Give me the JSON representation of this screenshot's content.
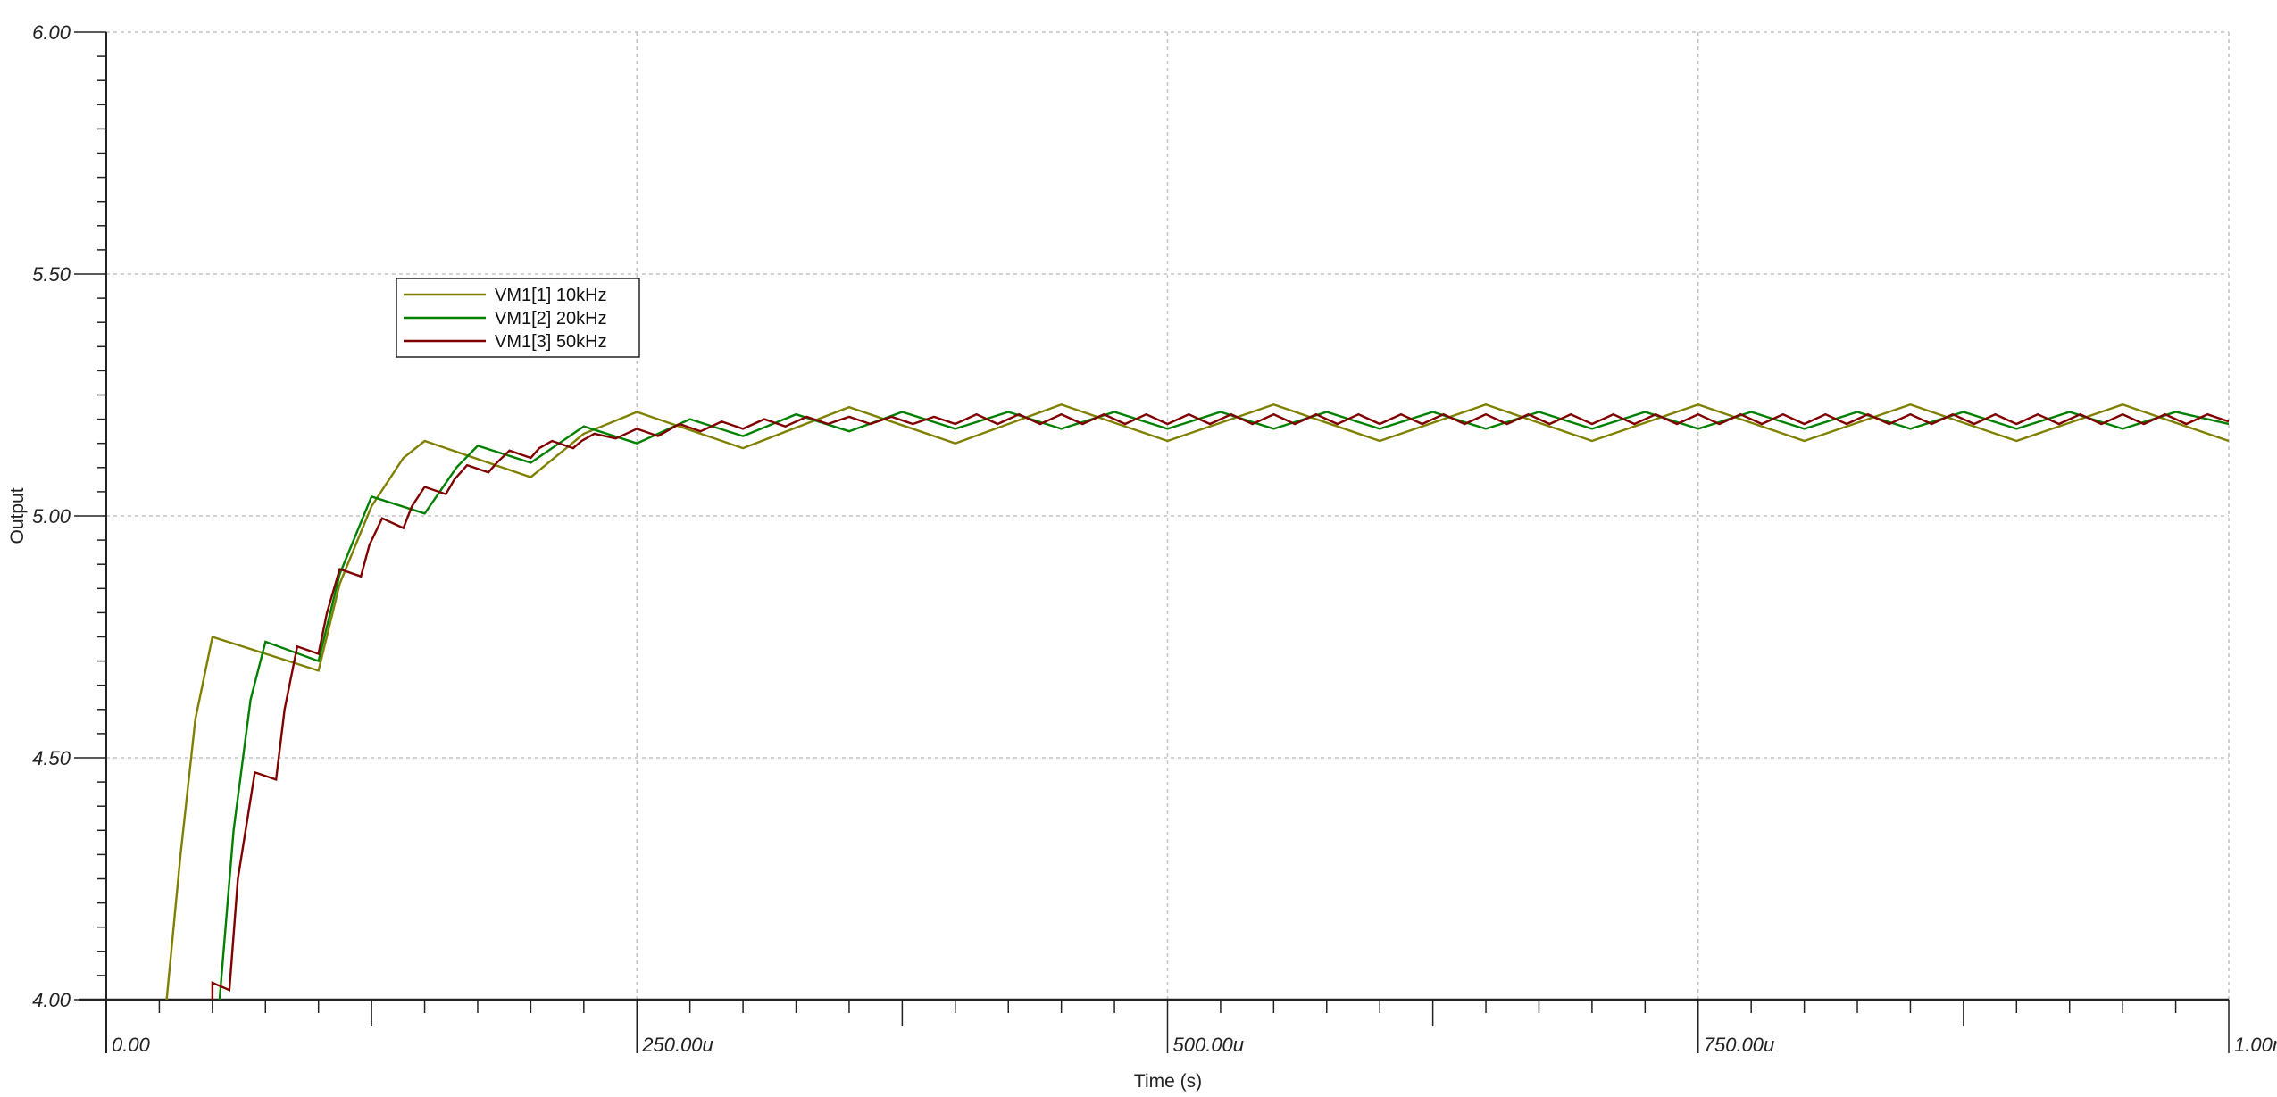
{
  "chart_data": {
    "type": "line",
    "title": "",
    "xlabel": "Time (s)",
    "ylabel": "Output",
    "xlim": [
      0,
      0.001
    ],
    "ylim": [
      4.0,
      6.0
    ],
    "x_ticks": [
      0,
      0.00025,
      0.0005,
      0.00075,
      0.001
    ],
    "x_tick_labels": [
      "0.00",
      "250.00u",
      "500.00u",
      "750.00u",
      "1.00m"
    ],
    "y_ticks": [
      4.0,
      4.5,
      5.0,
      5.5,
      6.0
    ],
    "y_tick_labels": [
      "4.00",
      "4.50",
      "5.00",
      "5.50",
      "6.00"
    ],
    "grid": true,
    "legend_position": "upper-left",
    "series": [
      {
        "name": "VM1[1] 10kHz",
        "color": "#808000",
        "points": [
          [
            2.8e-05,
            3.98
          ],
          [
            3.5e-05,
            4.3
          ],
          [
            4.2e-05,
            4.58
          ],
          [
            5e-05,
            4.75
          ],
          [
            0.0001,
            4.68
          ],
          [
            0.00011,
            4.86
          ],
          [
            0.000125,
            5.02
          ],
          [
            0.00014,
            5.12
          ],
          [
            0.00015,
            5.155
          ],
          [
            0.0002,
            5.08
          ],
          [
            0.000225,
            5.17
          ],
          [
            0.00025,
            5.215
          ],
          [
            0.0003,
            5.14
          ],
          [
            0.00035,
            5.225
          ],
          [
            0.0004,
            5.15
          ],
          [
            0.00045,
            5.23
          ],
          [
            0.0005,
            5.155
          ],
          [
            0.00055,
            5.23
          ],
          [
            0.0006,
            5.155
          ],
          [
            0.00065,
            5.23
          ],
          [
            0.0007,
            5.155
          ],
          [
            0.00075,
            5.23
          ],
          [
            0.0008,
            5.155
          ],
          [
            0.00085,
            5.23
          ],
          [
            0.0009,
            5.155
          ],
          [
            0.00095,
            5.23
          ],
          [
            0.001,
            5.155
          ]
        ]
      },
      {
        "name": "VM1[2] 20kHz",
        "color": "#008000",
        "points": [
          [
            5.3e-05,
            3.98
          ],
          [
            6e-05,
            4.35
          ],
          [
            6.8e-05,
            4.62
          ],
          [
            7.5e-05,
            4.74
          ],
          [
            0.0001,
            4.7
          ],
          [
            0.00011,
            4.88
          ],
          [
            0.000125,
            5.04
          ],
          [
            0.00015,
            5.005
          ],
          [
            0.000165,
            5.1
          ],
          [
            0.000175,
            5.145
          ],
          [
            0.0002,
            5.11
          ],
          [
            0.000225,
            5.185
          ],
          [
            0.00025,
            5.15
          ],
          [
            0.000275,
            5.2
          ],
          [
            0.0003,
            5.165
          ],
          [
            0.000325,
            5.21
          ],
          [
            0.00035,
            5.175
          ],
          [
            0.000375,
            5.215
          ],
          [
            0.0004,
            5.18
          ],
          [
            0.000425,
            5.215
          ],
          [
            0.00045,
            5.18
          ],
          [
            0.000475,
            5.215
          ],
          [
            0.0005,
            5.18
          ],
          [
            0.000525,
            5.215
          ],
          [
            0.00055,
            5.18
          ],
          [
            0.000575,
            5.215
          ],
          [
            0.0006,
            5.18
          ],
          [
            0.000625,
            5.215
          ],
          [
            0.00065,
            5.18
          ],
          [
            0.000675,
            5.215
          ],
          [
            0.0007,
            5.18
          ],
          [
            0.000725,
            5.215
          ],
          [
            0.00075,
            5.18
          ],
          [
            0.000775,
            5.215
          ],
          [
            0.0008,
            5.18
          ],
          [
            0.000825,
            5.215
          ],
          [
            0.00085,
            5.18
          ],
          [
            0.000875,
            5.215
          ],
          [
            0.0009,
            5.18
          ],
          [
            0.000925,
            5.215
          ],
          [
            0.00095,
            5.18
          ],
          [
            0.000975,
            5.215
          ],
          [
            0.001,
            5.19
          ]
        ]
      },
      {
        "name": "VM1[3] 50kHz",
        "color": "#800000",
        "points": [
          [
            5e-05,
            3.98
          ],
          [
            5e-05,
            4.035
          ],
          [
            5.8e-05,
            4.02
          ],
          [
            6.2e-05,
            4.25
          ],
          [
            7e-05,
            4.47
          ],
          [
            8e-05,
            4.455
          ],
          [
            8.4e-05,
            4.6
          ],
          [
            9e-05,
            4.73
          ],
          [
            0.0001,
            4.715
          ],
          [
            0.000104,
            4.8
          ],
          [
            0.00011,
            4.89
          ],
          [
            0.00012,
            4.875
          ],
          [
            0.000124,
            4.94
          ],
          [
            0.00013,
            4.995
          ],
          [
            0.00014,
            4.975
          ],
          [
            0.000144,
            5.02
          ],
          [
            0.00015,
            5.06
          ],
          [
            0.00016,
            5.045
          ],
          [
            0.000164,
            5.075
          ],
          [
            0.00017,
            5.105
          ],
          [
            0.00018,
            5.09
          ],
          [
            0.000184,
            5.11
          ],
          [
            0.00019,
            5.135
          ],
          [
            0.0002,
            5.12
          ],
          [
            0.000204,
            5.14
          ],
          [
            0.00021,
            5.155
          ],
          [
            0.00022,
            5.14
          ],
          [
            0.000224,
            5.155
          ],
          [
            0.00023,
            5.17
          ],
          [
            0.00024,
            5.16
          ],
          [
            0.00025,
            5.18
          ],
          [
            0.00026,
            5.165
          ],
          [
            0.00027,
            5.19
          ],
          [
            0.00028,
            5.175
          ],
          [
            0.00029,
            5.195
          ],
          [
            0.0003,
            5.18
          ],
          [
            0.00031,
            5.2
          ],
          [
            0.00032,
            5.185
          ],
          [
            0.00033,
            5.205
          ],
          [
            0.00034,
            5.19
          ],
          [
            0.00035,
            5.205
          ],
          [
            0.00036,
            5.19
          ],
          [
            0.00037,
            5.205
          ],
          [
            0.00038,
            5.19
          ],
          [
            0.00039,
            5.205
          ],
          [
            0.0004,
            5.19
          ],
          [
            0.00041,
            5.21
          ],
          [
            0.00042,
            5.19
          ],
          [
            0.00043,
            5.21
          ],
          [
            0.00044,
            5.19
          ],
          [
            0.00045,
            5.21
          ],
          [
            0.00046,
            5.19
          ],
          [
            0.00047,
            5.21
          ],
          [
            0.00048,
            5.19
          ],
          [
            0.00049,
            5.21
          ],
          [
            0.0005,
            5.19
          ],
          [
            0.00051,
            5.21
          ],
          [
            0.00052,
            5.19
          ],
          [
            0.00053,
            5.21
          ],
          [
            0.00054,
            5.19
          ],
          [
            0.00055,
            5.21
          ],
          [
            0.00056,
            5.19
          ],
          [
            0.00057,
            5.21
          ],
          [
            0.00058,
            5.19
          ],
          [
            0.00059,
            5.21
          ],
          [
            0.0006,
            5.19
          ],
          [
            0.00061,
            5.21
          ],
          [
            0.00062,
            5.19
          ],
          [
            0.00063,
            5.21
          ],
          [
            0.00064,
            5.19
          ],
          [
            0.00065,
            5.21
          ],
          [
            0.00066,
            5.19
          ],
          [
            0.00067,
            5.21
          ],
          [
            0.00068,
            5.19
          ],
          [
            0.00069,
            5.21
          ],
          [
            0.0007,
            5.19
          ],
          [
            0.00071,
            5.21
          ],
          [
            0.00072,
            5.19
          ],
          [
            0.00073,
            5.21
          ],
          [
            0.00074,
            5.19
          ],
          [
            0.00075,
            5.21
          ],
          [
            0.00076,
            5.19
          ],
          [
            0.00077,
            5.21
          ],
          [
            0.00078,
            5.19
          ],
          [
            0.00079,
            5.21
          ],
          [
            0.0008,
            5.19
          ],
          [
            0.00081,
            5.21
          ],
          [
            0.00082,
            5.19
          ],
          [
            0.00083,
            5.21
          ],
          [
            0.00084,
            5.19
          ],
          [
            0.00085,
            5.21
          ],
          [
            0.00086,
            5.19
          ],
          [
            0.00087,
            5.21
          ],
          [
            0.00088,
            5.19
          ],
          [
            0.00089,
            5.21
          ],
          [
            0.0009,
            5.19
          ],
          [
            0.00091,
            5.21
          ],
          [
            0.00092,
            5.19
          ],
          [
            0.00093,
            5.21
          ],
          [
            0.00094,
            5.19
          ],
          [
            0.00095,
            5.21
          ],
          [
            0.00096,
            5.19
          ],
          [
            0.00097,
            5.21
          ],
          [
            0.00098,
            5.19
          ],
          [
            0.00099,
            5.21
          ],
          [
            0.001,
            5.195
          ]
        ]
      }
    ]
  }
}
